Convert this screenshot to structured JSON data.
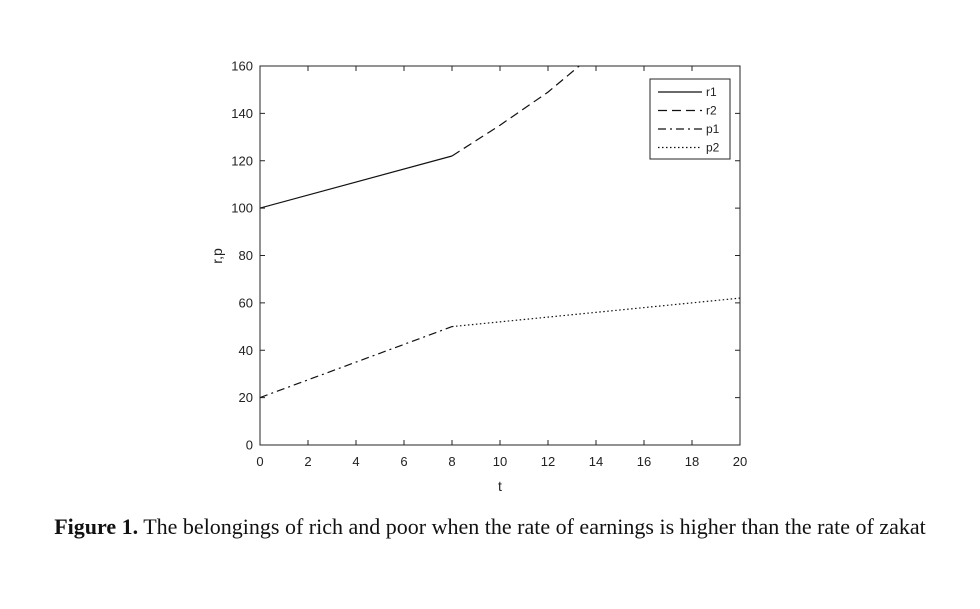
{
  "chart_data": {
    "type": "line",
    "xlabel": "t",
    "ylabel": "r,p",
    "xlim": [
      0,
      20
    ],
    "ylim": [
      0,
      160
    ],
    "xticks": [
      0,
      2,
      4,
      6,
      8,
      10,
      12,
      14,
      16,
      18,
      20
    ],
    "yticks": [
      0,
      20,
      40,
      60,
      80,
      100,
      120,
      140,
      160
    ],
    "grid": false,
    "legend_position": "top-right",
    "series": [
      {
        "name": "r1",
        "style": "solid",
        "x": [
          0,
          8
        ],
        "y": [
          100,
          122
        ]
      },
      {
        "name": "r2",
        "style": "dashed",
        "x": [
          8,
          10,
          12,
          13.3
        ],
        "y": [
          122,
          135,
          149,
          160
        ]
      },
      {
        "name": "p1",
        "style": "dashdot",
        "x": [
          0,
          8
        ],
        "y": [
          20,
          50
        ]
      },
      {
        "name": "p2",
        "style": "dotted",
        "x": [
          8,
          20
        ],
        "y": [
          50,
          62
        ]
      }
    ]
  },
  "caption": {
    "label": "Figure 1.",
    "text": " The belongings of rich and poor when the rate of earnings is higher than the rate of zakat"
  }
}
